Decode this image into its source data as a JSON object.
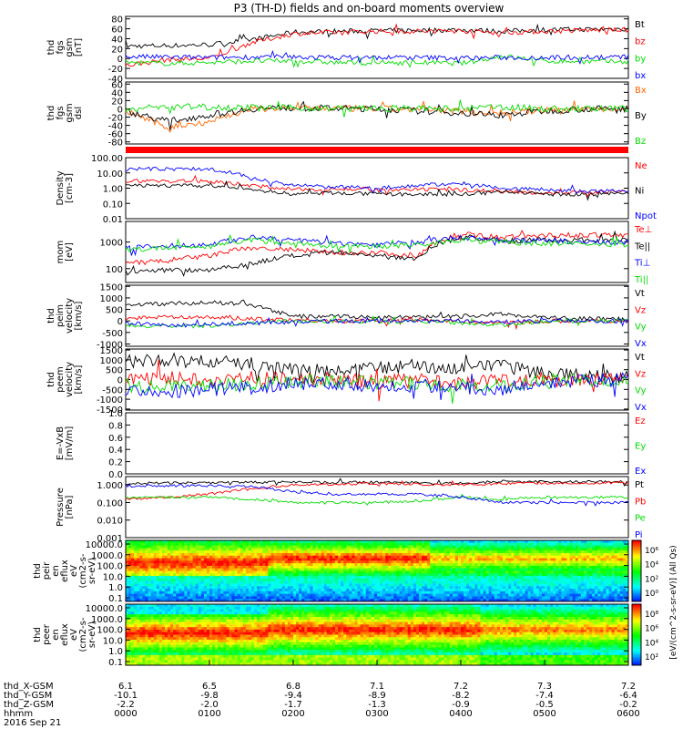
{
  "title": "P3 (TH-D) fields and on-board moments overview",
  "colors": {
    "black": "#000000",
    "red": "#ff0000",
    "green": "#00dd00",
    "blue": "#0000ff",
    "orange": "#ff6600"
  },
  "chart_data": [
    {
      "type": "line",
      "id": "fgs",
      "ylabel": [
        "thd",
        "fgs",
        "gsm",
        "[nT]"
      ],
      "ticks": [
        "80",
        "60",
        "40",
        "20",
        "0",
        "-20",
        "-40"
      ],
      "ylim": [
        -40,
        85
      ],
      "series": [
        {
          "name": "Bt",
          "color": "#000000",
          "values": [
            25,
            26,
            28,
            38,
            53,
            55,
            56,
            57,
            58,
            55,
            58,
            59,
            60
          ]
        },
        {
          "name": "bz",
          "color": "#ff0000",
          "values": [
            -14,
            -2,
            0,
            32,
            50,
            53,
            55,
            55,
            56,
            52,
            55,
            57,
            58
          ]
        },
        {
          "name": "by",
          "color": "#00dd00",
          "values": [
            -8,
            -10,
            -8,
            -5,
            -5,
            -8,
            -9,
            -8,
            -10,
            5,
            -5,
            -6,
            -6
          ]
        },
        {
          "name": "bx",
          "color": "#0000ff",
          "values": [
            4,
            3,
            2,
            3,
            3,
            2,
            2,
            2,
            1,
            2,
            2,
            3,
            3
          ]
        }
      ]
    },
    {
      "type": "line",
      "id": "fgs-gse",
      "ylabel": [
        "thd",
        "fgs",
        "gsm",
        "dsl"
      ],
      "ticks": [
        "60",
        "40",
        "20",
        "0",
        "-20",
        "-40",
        "-60",
        "-80"
      ],
      "ylim": [
        -85,
        65
      ],
      "series": [
        {
          "name": "Bx",
          "color": "#ff6600",
          "values": [
            -5,
            -45,
            -30,
            0,
            2,
            1,
            0,
            -2,
            -5,
            -10,
            -3,
            0,
            0
          ]
        },
        {
          "name": "By",
          "color": "#000000",
          "values": [
            -5,
            -30,
            -15,
            0,
            3,
            1,
            0,
            -5,
            -10,
            -15,
            -5,
            0,
            0
          ]
        },
        {
          "name": "Bz",
          "color": "#00dd00",
          "values": [
            0,
            5,
            5,
            3,
            2,
            1,
            2,
            0,
            0,
            5,
            0,
            0,
            0
          ]
        }
      ]
    },
    {
      "type": "line",
      "id": "density",
      "log": true,
      "ylabel": [
        "Density",
        "[cm-3]"
      ],
      "ticks": [
        "100.00",
        "10.00",
        "1.00",
        "0.10",
        "0.01"
      ],
      "tick_values": [
        100,
        10,
        1,
        0.1,
        0.01
      ],
      "ylim": [
        0.01,
        100
      ],
      "series": [
        {
          "name": "Ne",
          "color": "#ff0000",
          "values": [
            3,
            3,
            2.8,
            1.5,
            0.8,
            0.9,
            0.7,
            0.8,
            0.8,
            0.6,
            0.5,
            0.5,
            0.6
          ]
        },
        {
          "name": "Ni",
          "color": "#000000",
          "values": [
            1.5,
            1.5,
            1.4,
            0.8,
            0.4,
            0.5,
            0.4,
            0.4,
            0.4,
            0.6,
            0.4,
            0.4,
            0.5
          ]
        },
        {
          "name": "Npot",
          "color": "#0000ff",
          "values": [
            18,
            18,
            18,
            4,
            1.5,
            1.2,
            1,
            1.5,
            2,
            1,
            0.8,
            0.6,
            0.7
          ]
        }
      ]
    },
    {
      "type": "line",
      "id": "mom",
      "log": true,
      "ylabel": [
        "mom",
        "[eV]"
      ],
      "ticks": [
        "1000",
        "100"
      ],
      "tick_values": [
        1000,
        100
      ],
      "ylim": [
        30,
        6000
      ],
      "series": [
        {
          "name": "Te⊥",
          "color": "#ff0000",
          "values": [
            150,
            200,
            300,
            600,
            500,
            400,
            400,
            300,
            2000,
            1500,
            1800,
            1800,
            1900
          ]
        },
        {
          "name": "Te||",
          "color": "#000000",
          "values": [
            70,
            90,
            90,
            150,
            300,
            400,
            300,
            250,
            1500,
            1100,
            1200,
            1200,
            1300
          ]
        },
        {
          "name": "Ti⊥",
          "color": "#0000ff",
          "values": [
            600,
            700,
            800,
            1500,
            1200,
            900,
            800,
            1000,
            1500,
            1200,
            1100,
            1000,
            1000
          ]
        },
        {
          "name": "Ti||",
          "color": "#00dd00",
          "values": [
            500,
            600,
            700,
            1200,
            900,
            700,
            700,
            800,
            1200,
            1000,
            900,
            800,
            800
          ]
        }
      ]
    },
    {
      "type": "line",
      "id": "peim",
      "ylabel": [
        "thd",
        "peim",
        "velocity",
        "[km/s]"
      ],
      "ticks": [
        "1500",
        "1000",
        "500",
        "0",
        "-500",
        "-1000"
      ],
      "ylim": [
        -1100,
        1550
      ],
      "series": [
        {
          "name": "Vt",
          "color": "#000000",
          "values": [
            700,
            750,
            800,
            700,
            200,
            200,
            150,
            150,
            200,
            300,
            150,
            100,
            80
          ]
        },
        {
          "name": "Vz",
          "color": "#ff0000",
          "values": [
            100,
            200,
            150,
            100,
            50,
            0,
            0,
            50,
            0,
            -100,
            0,
            0,
            0
          ]
        },
        {
          "name": "Vy",
          "color": "#00dd00",
          "values": [
            -200,
            -250,
            -200,
            -100,
            0,
            0,
            -50,
            0,
            -100,
            -200,
            0,
            0,
            0
          ]
        },
        {
          "name": "Vx",
          "color": "#0000ff",
          "values": [
            -100,
            -200,
            -150,
            -100,
            -50,
            0,
            0,
            0,
            0,
            -50,
            0,
            0,
            0
          ]
        }
      ]
    },
    {
      "type": "line",
      "id": "peem",
      "ylabel": [
        "thd",
        "peem",
        "velocity",
        "[km/s]"
      ],
      "ticks": [
        "1500",
        "1000",
        "500",
        "0",
        "-500",
        "-1000",
        "-1500"
      ],
      "ylim": [
        -1550,
        1550
      ],
      "series": [
        {
          "name": "Vt",
          "color": "#000000",
          "values": [
            900,
            1000,
            900,
            800,
            500,
            400,
            600,
            700,
            500,
            700,
            300,
            200,
            150
          ]
        },
        {
          "name": "Vz",
          "color": "#ff0000",
          "values": [
            0,
            100,
            0,
            100,
            0,
            0,
            -100,
            0,
            -200,
            0,
            0,
            0,
            0
          ]
        },
        {
          "name": "Vy",
          "color": "#00dd00",
          "values": [
            -300,
            -400,
            -300,
            -200,
            -100,
            -100,
            -200,
            -200,
            -300,
            -400,
            -50,
            0,
            0
          ]
        },
        {
          "name": "Vx",
          "color": "#0000ff",
          "values": [
            -500,
            -600,
            -500,
            -400,
            -200,
            -200,
            -300,
            -300,
            -400,
            -500,
            -100,
            -50,
            0
          ]
        }
      ]
    },
    {
      "type": "line",
      "id": "efield",
      "ylabel": [
        "E=-VxB",
        "[mV/m]"
      ],
      "ticks": [
        "1.0",
        "0.8",
        "0.6",
        "0.4",
        "0.2",
        "0.0"
      ],
      "ylim": [
        0,
        1
      ],
      "series": [
        {
          "name": "Ez",
          "color": "#ff0000",
          "values": []
        },
        {
          "name": "Ey",
          "color": "#00dd00",
          "values": []
        },
        {
          "name": "Ex",
          "color": "#0000ff",
          "values": []
        }
      ]
    },
    {
      "type": "line",
      "id": "pressure",
      "log": true,
      "ylabel": [
        "Pressure",
        "[nPa]"
      ],
      "ticks": [
        "1.000",
        "0.100",
        "0.010",
        "0.001"
      ],
      "tick_values": [
        1,
        0.1,
        0.01,
        0.001
      ],
      "ylim": [
        0.001,
        3
      ],
      "series": [
        {
          "name": "Pt",
          "color": "#000000",
          "values": [
            1.2,
            1.3,
            1.3,
            1.4,
            1.5,
            1.4,
            1.4,
            1.3,
            1.2,
            1.6,
            1.5,
            1.5,
            1.5
          ]
        },
        {
          "name": "Pb",
          "color": "#ff0000",
          "values": [
            0.15,
            0.2,
            0.3,
            0.6,
            1.0,
            1.1,
            1.2,
            1.1,
            1.0,
            1.2,
            1.3,
            1.3,
            1.4
          ]
        },
        {
          "name": "Pe",
          "color": "#00dd00",
          "values": [
            0.2,
            0.2,
            0.2,
            0.15,
            0.1,
            0.1,
            0.1,
            0.12,
            0.2,
            0.15,
            0.2,
            0.2,
            0.2
          ]
        },
        {
          "name": "Pi",
          "color": "#0000ff",
          "values": [
            0.9,
            0.9,
            0.9,
            0.8,
            0.4,
            0.3,
            0.3,
            0.3,
            0.2,
            0.1,
            0.1,
            0.1,
            0.1
          ]
        }
      ]
    },
    {
      "type": "heatmap",
      "id": "peir",
      "ylabel": [
        "thd",
        "peir",
        "en",
        "eflux",
        "eV",
        "(cm2-s-",
        "sr-eV)"
      ],
      "ticks": [
        "10000.0",
        "1000.0",
        "100.0",
        "10.0",
        "1.0",
        "0.1"
      ]
    },
    {
      "type": "heatmap",
      "id": "peer",
      "ylabel": [
        "thd",
        "peer",
        "en",
        "eflux",
        "eV",
        "(cm2-s-",
        "sr-eV)"
      ],
      "ticks": [
        "10000.0",
        "1000.0",
        "100.0",
        "10.0",
        "1.0",
        "0.1"
      ]
    }
  ],
  "colorbar": {
    "label": "[eV/(cm^2-s-sr-eV)] (All Qs)",
    "ticks_top": [
      "10⁶",
      "10⁴",
      "10²",
      "10⁰"
    ],
    "ticks_bottom": [
      "10⁸",
      "10⁶",
      "10⁴",
      "10²"
    ]
  },
  "xaxis": {
    "rows": [
      {
        "label": "thd_X-GSM",
        "values": [
          "6.1",
          "6.5",
          "6.8",
          "7.1",
          "7.2",
          "7.3",
          "7.2"
        ]
      },
      {
        "label": "thd_Y-GSM",
        "values": [
          "-10.1",
          "-9.8",
          "-9.4",
          "-8.9",
          "-8.2",
          "-7.4",
          "-6.4"
        ]
      },
      {
        "label": "thd_Z-GSM",
        "values": [
          "-2.2",
          "-2.0",
          "-1.7",
          "-1.3",
          "-0.9",
          "-0.5",
          "-0.2"
        ]
      },
      {
        "label": "hhmm",
        "values": [
          "0000",
          "0100",
          "0200",
          "0300",
          "0400",
          "0500",
          "0600"
        ]
      }
    ],
    "date": "2016 Sep 21"
  }
}
